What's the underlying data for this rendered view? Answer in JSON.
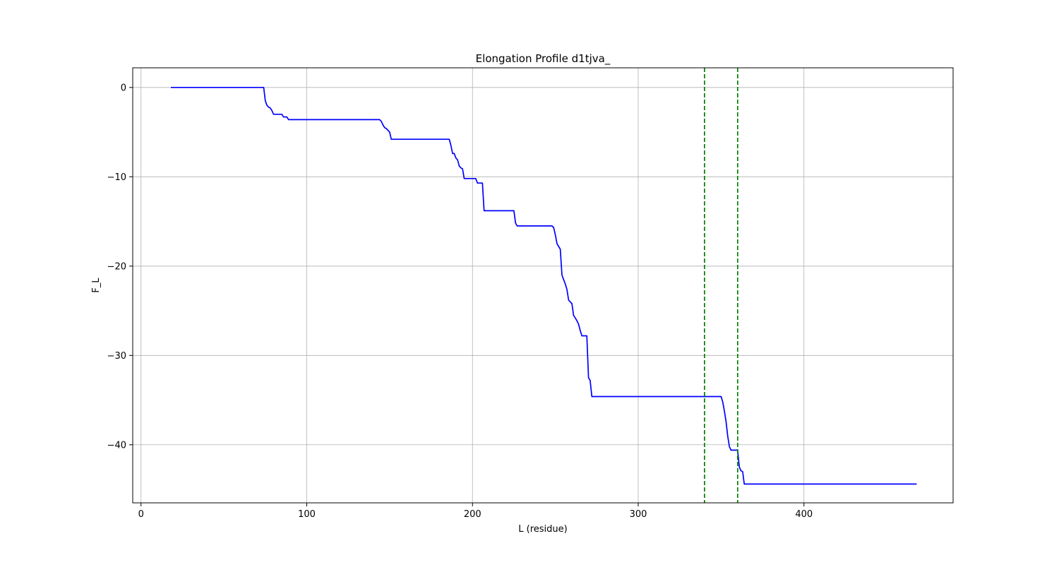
{
  "chart_data": {
    "type": "line",
    "title": "Elongation Profile d1tjva_",
    "xlabel": "L (residue)",
    "ylabel": "F_L",
    "xlim": [
      -5,
      490
    ],
    "ylim": [
      -46.5,
      2.2
    ],
    "xticks": [
      0,
      100,
      200,
      300,
      400
    ],
    "yticks": [
      0,
      -10,
      -20,
      -30,
      -40
    ],
    "grid": true,
    "series": [
      {
        "color": "#0000ff",
        "x": [
          18,
          74,
          75,
          76,
          77,
          78,
          79,
          80,
          82,
          84,
          85,
          86,
          87,
          88,
          89,
          95,
          100,
          110,
          120,
          130,
          140,
          144,
          145,
          146,
          147,
          148,
          149,
          150,
          151,
          152,
          160,
          170,
          180,
          186,
          187,
          188,
          189,
          190,
          191,
          192,
          193,
          194,
          195,
          200,
          202,
          203,
          204,
          205,
          206,
          207,
          210,
          220,
          225,
          226,
          227,
          228,
          230,
          240,
          248,
          249,
          250,
          251,
          252,
          253,
          254,
          255,
          256,
          257,
          258,
          259,
          260,
          261,
          262,
          263,
          264,
          265,
          266,
          267,
          268,
          269,
          270,
          271,
          272,
          280,
          290,
          300,
          320,
          340,
          350,
          351,
          352,
          353,
          354,
          355,
          356,
          357,
          358,
          359,
          360,
          361,
          362,
          363,
          364,
          365,
          366,
          370,
          380,
          400,
          420,
          440,
          460,
          468
        ],
        "y": [
          0,
          0,
          -1.5,
          -2.0,
          -2.2,
          -2.3,
          -2.6,
          -3.0,
          -3.0,
          -3.0,
          -3.0,
          -3.3,
          -3.3,
          -3.3,
          -3.6,
          -3.6,
          -3.6,
          -3.6,
          -3.6,
          -3.6,
          -3.6,
          -3.6,
          -3.8,
          -4.2,
          -4.5,
          -4.6,
          -4.8,
          -5.0,
          -5.8,
          -5.8,
          -5.8,
          -5.8,
          -5.8,
          -5.8,
          -6.5,
          -7.4,
          -7.4,
          -7.9,
          -8.1,
          -8.8,
          -9.0,
          -9.1,
          -10.2,
          -10.2,
          -10.2,
          -10.7,
          -10.7,
          -10.7,
          -10.7,
          -13.8,
          -13.8,
          -13.8,
          -13.8,
          -15.2,
          -15.5,
          -15.5,
          -15.5,
          -15.5,
          -15.5,
          -15.7,
          -16.5,
          -17.5,
          -17.8,
          -18.1,
          -21.0,
          -21.5,
          -22.0,
          -22.6,
          -23.8,
          -24.0,
          -24.2,
          -25.5,
          -25.8,
          -26.1,
          -26.5,
          -27.2,
          -27.8,
          -27.8,
          -27.8,
          -27.8,
          -32.5,
          -32.8,
          -34.6,
          -34.6,
          -34.6,
          -34.6,
          -34.6,
          -34.6,
          -34.6,
          -35.2,
          -36.2,
          -37.4,
          -39.0,
          -40.2,
          -40.6,
          -40.6,
          -40.6,
          -40.6,
          -40.6,
          -42.5,
          -42.9,
          -43.0,
          -44.4,
          -44.4,
          -44.4,
          -44.4,
          -44.4,
          -44.4,
          -44.4,
          -44.4,
          -44.4,
          -44.4
        ]
      }
    ],
    "vlines": [
      {
        "x": 340,
        "color": "#008000",
        "style": "dashed"
      },
      {
        "x": 360,
        "color": "#008000",
        "style": "dashed"
      }
    ]
  }
}
